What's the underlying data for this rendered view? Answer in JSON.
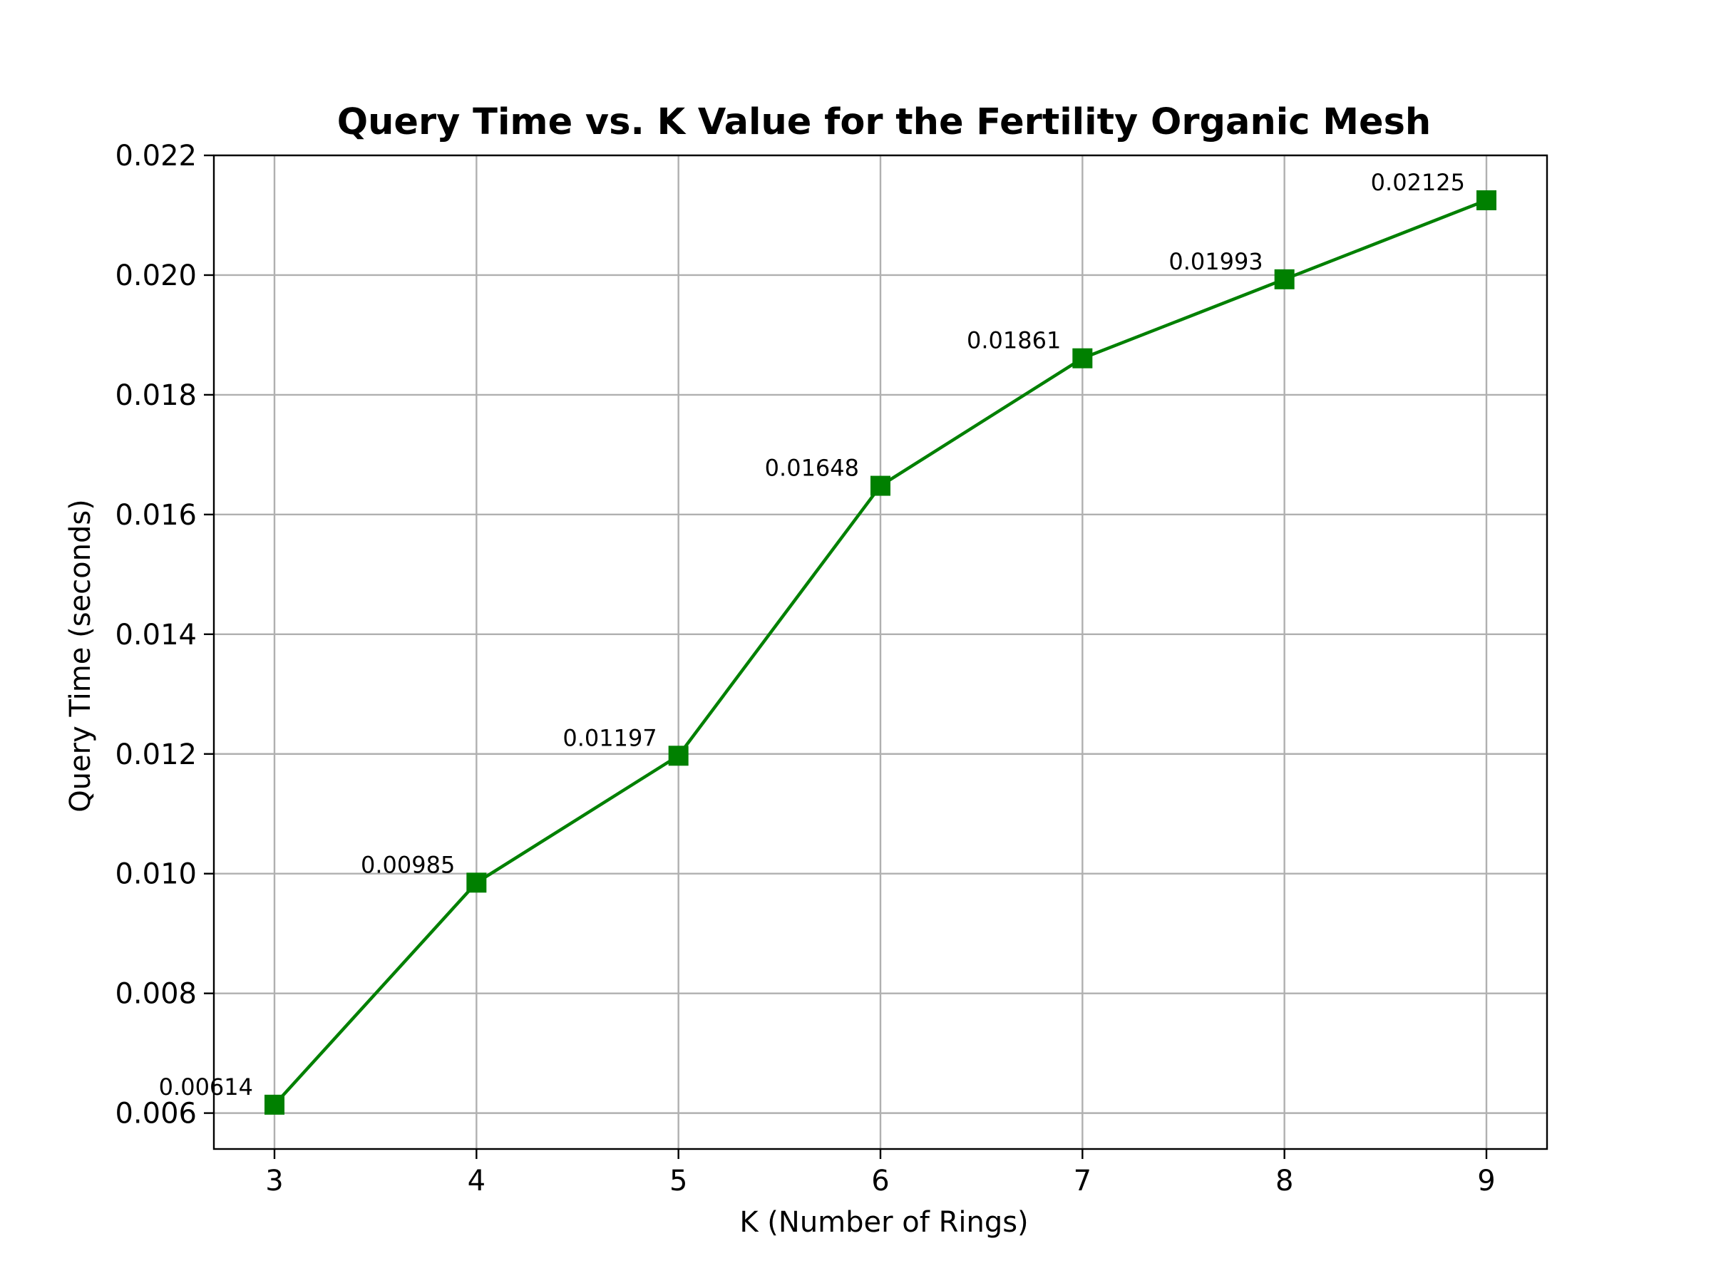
{
  "chart_data": {
    "type": "line",
    "title": "Query Time vs. K Value for the Fertility Organic Mesh",
    "xlabel": "K (Number of Rings)",
    "ylabel": "Query Time (seconds)",
    "x": [
      3,
      4,
      5,
      6,
      7,
      8,
      9
    ],
    "series": [
      {
        "values": [
          0.00614,
          0.00985,
          0.01197,
          0.01648,
          0.01861,
          0.01993,
          0.02125
        ],
        "data_labels": [
          "0.00614",
          "0.00985",
          "0.01197",
          "0.01648",
          "0.01861",
          "0.01993",
          "0.02125"
        ],
        "color": "#008000",
        "marker": "square"
      }
    ],
    "xlim": [
      2.7,
      9.3
    ],
    "ylim": [
      0.0054,
      0.022
    ],
    "xticks": [
      3,
      4,
      5,
      6,
      7,
      8,
      9
    ],
    "xtick_labels": [
      "3",
      "4",
      "5",
      "6",
      "7",
      "8",
      "9"
    ],
    "yticks": [
      0.006,
      0.008,
      0.01,
      0.012,
      0.014,
      0.016,
      0.018,
      0.02,
      0.022
    ],
    "ytick_labels": [
      "0.006",
      "0.008",
      "0.010",
      "0.012",
      "0.014",
      "0.016",
      "0.018",
      "0.020",
      "0.022"
    ],
    "grid": true,
    "legend": "none"
  }
}
